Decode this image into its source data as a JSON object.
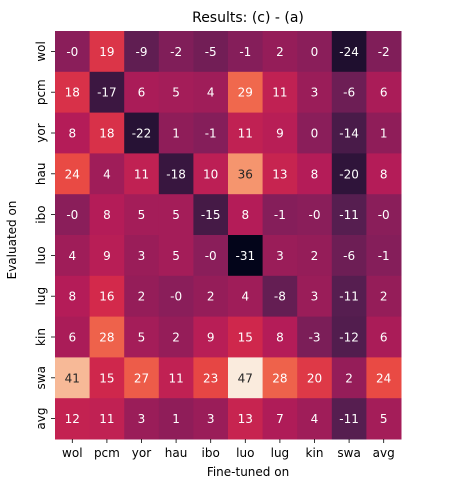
{
  "chart_data": {
    "type": "heatmap",
    "title": "Results: (c) - (a)",
    "xlabel": "Fine-tuned on",
    "ylabel": "Evaluated on",
    "x_categories": [
      "wol",
      "pcm",
      "yor",
      "hau",
      "ibo",
      "luo",
      "lug",
      "kin",
      "swa",
      "avg"
    ],
    "y_categories": [
      "wol",
      "pcm",
      "yor",
      "hau",
      "ibo",
      "luo",
      "lug",
      "kin",
      "swa",
      "avg"
    ],
    "values": [
      [
        0,
        19,
        -9,
        -2,
        -5,
        -1,
        2,
        0,
        -24,
        -2
      ],
      [
        18,
        -17,
        6,
        5,
        4,
        29,
        11,
        3,
        -6,
        6
      ],
      [
        8,
        18,
        -22,
        1,
        -1,
        11,
        9,
        0,
        -14,
        1
      ],
      [
        24,
        4,
        11,
        -18,
        10,
        36,
        13,
        8,
        -20,
        8
      ],
      [
        0,
        8,
        5,
        5,
        -15,
        8,
        -1,
        0,
        -11,
        0
      ],
      [
        4,
        9,
        3,
        5,
        0,
        -31,
        3,
        2,
        -6,
        -1
      ],
      [
        8,
        16,
        2,
        0,
        2,
        4,
        -8,
        3,
        -11,
        2
      ],
      [
        6,
        28,
        5,
        2,
        9,
        15,
        8,
        -3,
        -12,
        6
      ],
      [
        41,
        15,
        27,
        11,
        23,
        47,
        28,
        20,
        2,
        24
      ],
      [
        12,
        11,
        3,
        1,
        3,
        13,
        7,
        4,
        -11,
        5
      ]
    ],
    "labels": [
      [
        "-0",
        "19",
        "-9",
        "-2",
        "-5",
        "-1",
        "2",
        "0",
        "-24",
        "-2"
      ],
      [
        "18",
        "-17",
        "6",
        "5",
        "4",
        "29",
        "11",
        "3",
        "-6",
        "6"
      ],
      [
        "8",
        "18",
        "-22",
        "1",
        "-1",
        "11",
        "9",
        "0",
        "-14",
        "1"
      ],
      [
        "24",
        "4",
        "11",
        "-18",
        "10",
        "36",
        "13",
        "8",
        "-20",
        "8"
      ],
      [
        "-0",
        "8",
        "5",
        "5",
        "-15",
        "8",
        "-1",
        "-0",
        "-11",
        "-0"
      ],
      [
        "4",
        "9",
        "3",
        "5",
        "-0",
        "-31",
        "3",
        "2",
        "-6",
        "-1"
      ],
      [
        "8",
        "16",
        "2",
        "-0",
        "2",
        "4",
        "-8",
        "3",
        "-11",
        "2"
      ],
      [
        "6",
        "28",
        "5",
        "2",
        "9",
        "15",
        "8",
        "-3",
        "-12",
        "6"
      ],
      [
        "41",
        "15",
        "27",
        "11",
        "23",
        "47",
        "28",
        "20",
        "2",
        "24"
      ],
      [
        "12",
        "11",
        "3",
        "1",
        "3",
        "13",
        "7",
        "4",
        "-11",
        "5"
      ]
    ],
    "vmin": -31,
    "vmax": 47,
    "colormap": "rocket",
    "colorbar": false,
    "grid": false
  }
}
